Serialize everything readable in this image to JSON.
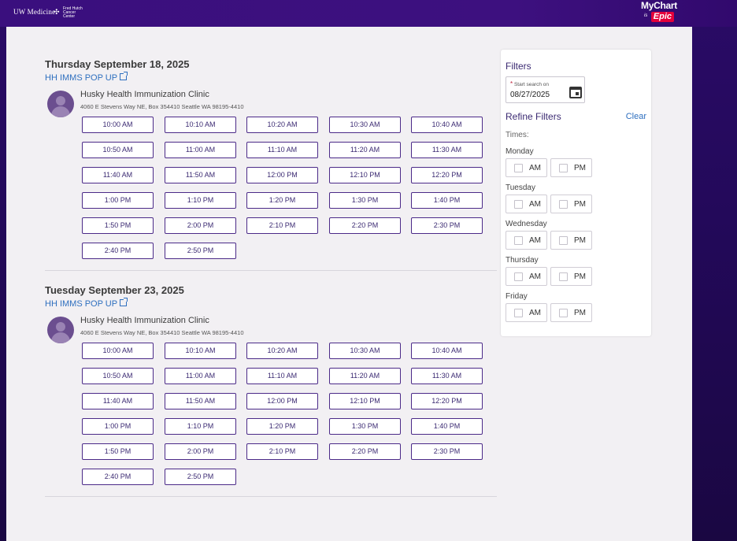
{
  "header": {
    "uw_logo": "UW Medicine",
    "fh_logo": "Fred Hutch Cancer Center",
    "mychart": "MyChart",
    "is": "is",
    "epic": "Epic"
  },
  "days": [
    {
      "title": "Thursday September 18, 2025",
      "department": "HH IMMS POP UP",
      "clinic_name": "Husky Health Immunization Clinic",
      "clinic_address": "4060 E Stevens Way NE, Box 354410 Seattle WA 98195-4410",
      "slots": [
        "10:00 AM",
        "10:10 AM",
        "10:20 AM",
        "10:30 AM",
        "10:40 AM",
        "10:50 AM",
        "11:00 AM",
        "11:10 AM",
        "11:20 AM",
        "11:30 AM",
        "11:40 AM",
        "11:50 AM",
        "12:00 PM",
        "12:10 PM",
        "12:20 PM",
        "1:00 PM",
        "1:10 PM",
        "1:20 PM",
        "1:30 PM",
        "1:40 PM",
        "1:50 PM",
        "2:00 PM",
        "2:10 PM",
        "2:20 PM",
        "2:30 PM",
        "2:40 PM",
        "2:50 PM"
      ]
    },
    {
      "title": "Tuesday September 23, 2025",
      "department": "HH IMMS POP UP",
      "clinic_name": "Husky Health Immunization Clinic",
      "clinic_address": "4060 E Stevens Way NE, Box 354410 Seattle WA 98195-4410",
      "slots": [
        "10:00 AM",
        "10:10 AM",
        "10:20 AM",
        "10:30 AM",
        "10:40 AM",
        "10:50 AM",
        "11:00 AM",
        "11:10 AM",
        "11:20 AM",
        "11:30 AM",
        "11:40 AM",
        "11:50 AM",
        "12:00 PM",
        "12:10 PM",
        "12:20 PM",
        "1:00 PM",
        "1:10 PM",
        "1:20 PM",
        "1:30 PM",
        "1:40 PM",
        "1:50 PM",
        "2:00 PM",
        "2:10 PM",
        "2:20 PM",
        "2:30 PM",
        "2:40 PM",
        "2:50 PM"
      ]
    }
  ],
  "filters": {
    "title": "Filters",
    "start_label": "Start search on",
    "required_mark": "*",
    "start_date": "08/27/2025",
    "refine_title": "Refine Filters",
    "clear_label": "Clear",
    "times_label": "Times:",
    "am_label": "AM",
    "pm_label": "PM",
    "weekdays": [
      "Monday",
      "Tuesday",
      "Wednesday",
      "Thursday",
      "Friday"
    ]
  },
  "colors": {
    "brand_purple": "#3d107f",
    "link_blue": "#2e6fbf",
    "epic_red": "#e4003b"
  }
}
